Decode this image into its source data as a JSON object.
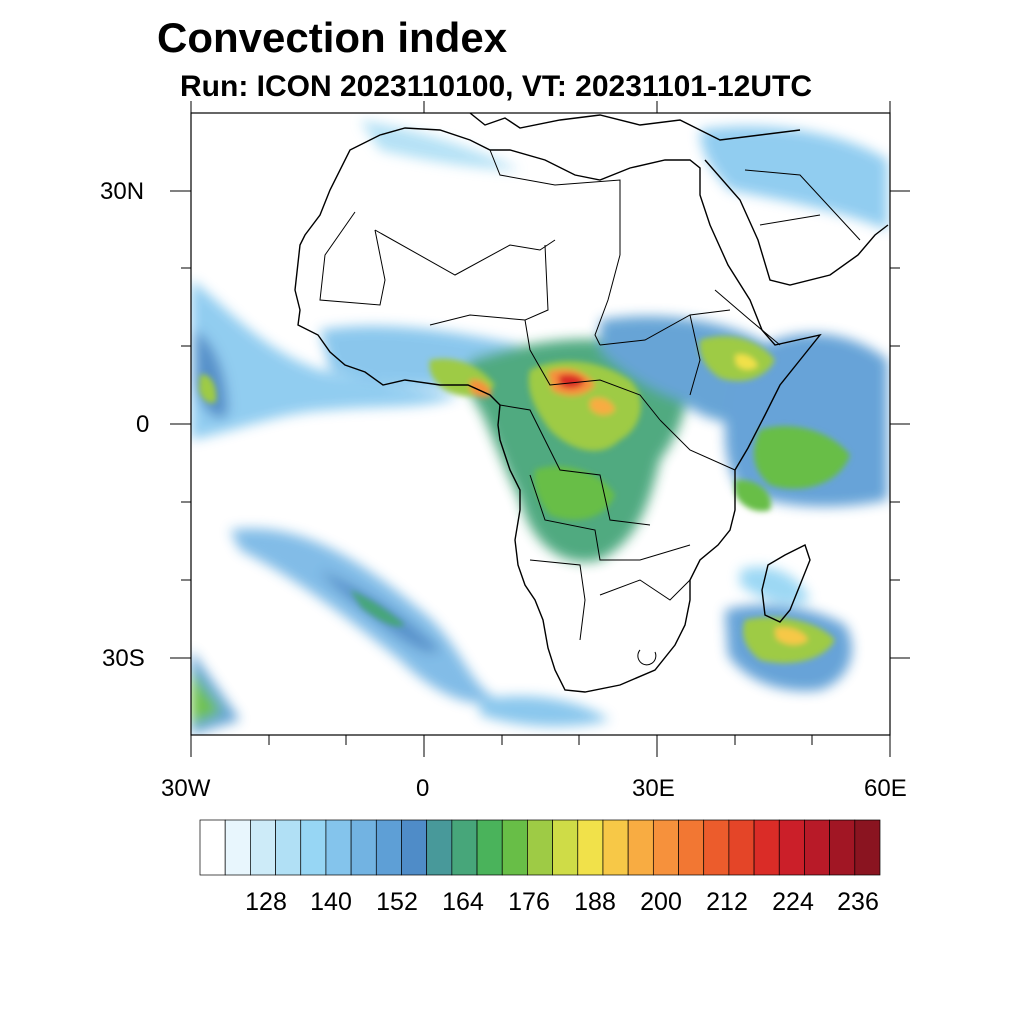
{
  "figure": {
    "title": "Convection index",
    "subtitle": "Run: ICON 2023110100,  VT: 20231101-12UTC"
  },
  "map": {
    "lon_range": [
      -30,
      60
    ],
    "lat_range": [
      -40,
      40
    ],
    "x_ticks": [
      {
        "lon": -30,
        "label": "30W"
      },
      {
        "lon": 0,
        "label": "0"
      },
      {
        "lon": 30,
        "label": "30E"
      },
      {
        "lon": 60,
        "label": "60E"
      }
    ],
    "y_ticks": [
      {
        "lat": 30,
        "label": "30N"
      },
      {
        "lat": 0,
        "label": "0"
      },
      {
        "lat": -30,
        "label": "30S"
      }
    ],
    "field": "convection index",
    "features": [
      {
        "name": "central-africa-convection",
        "lon": 17,
        "lat": 2,
        "value": 215
      },
      {
        "name": "drc-convection",
        "lon": 22,
        "lat": -4,
        "value": 190
      },
      {
        "name": "guinea-coast-convection",
        "lon": 5,
        "lat": 6,
        "value": 180
      },
      {
        "name": "ethiopia-convection",
        "lon": 40,
        "lat": 8,
        "value": 180
      },
      {
        "name": "indian-ocean-convection",
        "lon": 50,
        "lat": -3,
        "value": 168
      },
      {
        "name": "madagascar-south-convection",
        "lon": 49,
        "lat": -27,
        "value": 190
      },
      {
        "name": "atlantic-west-convection",
        "lon": -27,
        "lat": 4,
        "value": 170
      },
      {
        "name": "south-atlantic-band",
        "lon": 0,
        "lat": -27,
        "value": 155
      }
    ]
  },
  "colorbar": {
    "colors": [
      "#ffffff",
      "#e8f6fd",
      "#cdebf8",
      "#b1e0f5",
      "#97d6f4",
      "#84c4ec",
      "#72b3e2",
      "#5e9fd6",
      "#4f8cc8",
      "#48999a",
      "#47a67a",
      "#4ab35b",
      "#68be47",
      "#9ecb45",
      "#cfdc47",
      "#f1e14a",
      "#f7c847",
      "#f8ac42",
      "#f6913c",
      "#f27733",
      "#ec5c2c",
      "#e44528",
      "#da2c27",
      "#cb1f29",
      "#b81a28",
      "#a11624",
      "#8a1420"
    ],
    "labels": [
      "128",
      "140",
      "152",
      "164",
      "176",
      "188",
      "200",
      "212",
      "224",
      "236"
    ]
  }
}
